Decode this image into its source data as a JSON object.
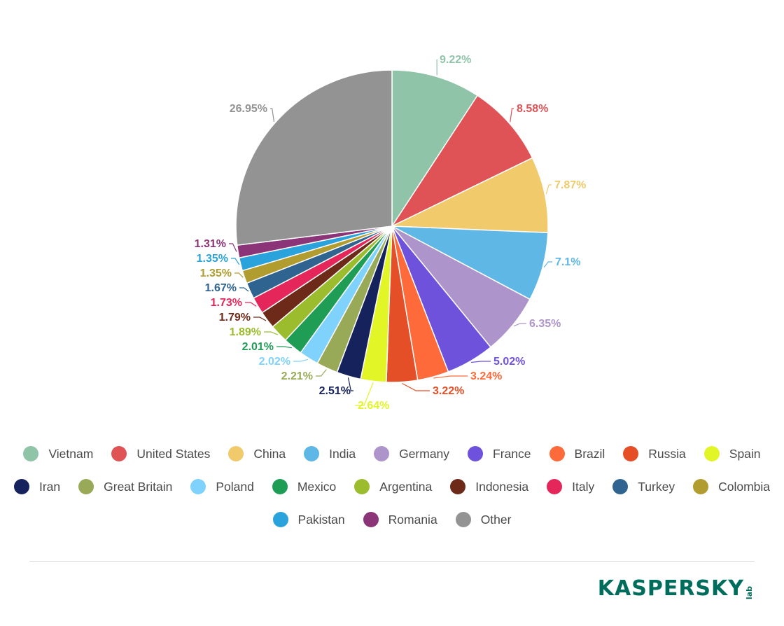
{
  "chart_data": {
    "type": "pie",
    "slices": [
      {
        "label": "Vietnam",
        "value": 9.22,
        "value_label": "9.22%",
        "color": "#8fc4a8"
      },
      {
        "label": "United States",
        "value": 8.58,
        "value_label": "8.58%",
        "color": "#df5356"
      },
      {
        "label": "China",
        "value": 7.87,
        "value_label": "7.87%",
        "color": "#f0ca6b"
      },
      {
        "label": "India",
        "value": 7.1,
        "value_label": "7.1%",
        "color": "#5eb7e5"
      },
      {
        "label": "Germany",
        "value": 6.35,
        "value_label": "6.35%",
        "color": "#ad95cb"
      },
      {
        "label": "France",
        "value": 5.02,
        "value_label": "5.02%",
        "color": "#6f52dc"
      },
      {
        "label": "Brazil",
        "value": 3.24,
        "value_label": "3.24%",
        "color": "#fe6a3a"
      },
      {
        "label": "Russia",
        "value": 3.22,
        "value_label": "3.22%",
        "color": "#e44f27"
      },
      {
        "label": "Spain",
        "value": 2.64,
        "value_label": "2.64%",
        "color": "#e2f526"
      },
      {
        "label": "Iran",
        "value": 2.51,
        "value_label": "2.51%",
        "color": "#15225c"
      },
      {
        "label": "Great Britain",
        "value": 2.21,
        "value_label": "2.21%",
        "color": "#98aa58"
      },
      {
        "label": "Poland",
        "value": 2.02,
        "value_label": "2.02%",
        "color": "#7fd2fb"
      },
      {
        "label": "Mexico",
        "value": 2.01,
        "value_label": "2.01%",
        "color": "#1f9d55"
      },
      {
        "label": "Argentina",
        "value": 1.89,
        "value_label": "1.89%",
        "color": "#9bbd2d"
      },
      {
        "label": "Indonesia",
        "value": 1.79,
        "value_label": "1.79%",
        "color": "#6e2a18"
      },
      {
        "label": "Italy",
        "value": 1.73,
        "value_label": "1.73%",
        "color": "#e4265a"
      },
      {
        "label": "Turkey",
        "value": 1.67,
        "value_label": "1.67%",
        "color": "#2f6490"
      },
      {
        "label": "Colombia",
        "value": 1.35,
        "value_label": "1.35%",
        "color": "#b19c2f"
      },
      {
        "label": "Pakistan",
        "value": 1.35,
        "value_label": "1.35%",
        "color": "#2aa2db"
      },
      {
        "label": "Romania",
        "value": 1.31,
        "value_label": "1.31%",
        "color": "#8c3478"
      },
      {
        "label": "Other",
        "value": 26.95,
        "value_label": "26.95%",
        "color": "#939393"
      }
    ],
    "legend_position": "bottom"
  },
  "legend_rows": [
    [
      0,
      1,
      2,
      3,
      4,
      5,
      6,
      7,
      8
    ],
    [
      9,
      10,
      11,
      12,
      13,
      14,
      15,
      16,
      17
    ],
    [
      18,
      19,
      20
    ]
  ],
  "brand": {
    "name": "KASPERSKY",
    "suffix": "lab",
    "color": "#006d5c"
  }
}
